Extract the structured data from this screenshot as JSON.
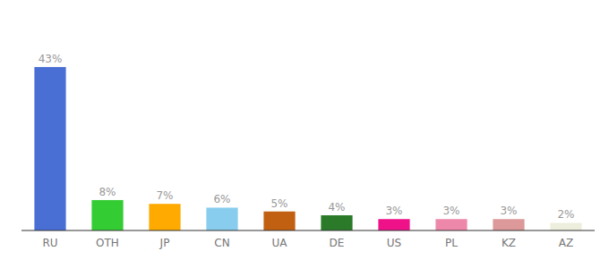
{
  "chart_data": {
    "type": "bar",
    "categories": [
      "RU",
      "OTH",
      "JP",
      "CN",
      "UA",
      "DE",
      "US",
      "PL",
      "KZ",
      "AZ"
    ],
    "values": [
      43,
      8,
      7,
      6,
      5,
      4,
      3,
      3,
      3,
      2
    ],
    "value_labels": [
      "43%",
      "8%",
      "7%",
      "6%",
      "5%",
      "4%",
      "3%",
      "3%",
      "3%",
      "2%"
    ],
    "colors": [
      "#4a6fd4",
      "#33cc33",
      "#ffaa00",
      "#88ccee",
      "#c06010",
      "#2a7a2a",
      "#ee1188",
      "#ee88aa",
      "#dd9999",
      "#eeeedd"
    ],
    "ylim": [
      0,
      55
    ],
    "data_labels": true,
    "tick_labels": "x",
    "grid": false
  }
}
